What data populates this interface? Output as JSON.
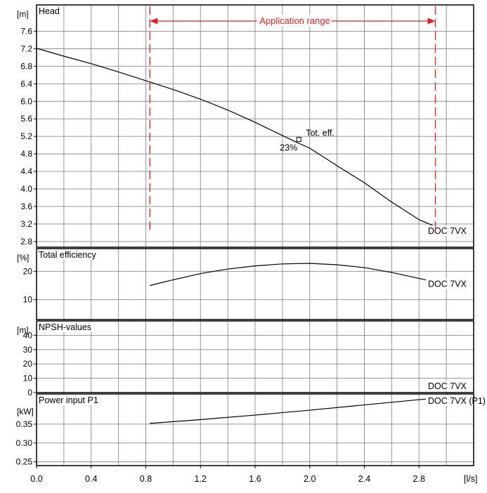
{
  "chart_data": {
    "type": "line",
    "x_axis": {
      "unit": "[l/s]",
      "range": [
        0,
        3.2
      ],
      "ticks": [
        "0.0",
        "0.4",
        "0.8",
        "1.2",
        "1.6",
        "2.0",
        "2.4",
        "2.8"
      ],
      "tick_values": [
        0,
        0.4,
        0.8,
        1.2,
        1.6,
        2.0,
        2.4,
        2.8
      ]
    },
    "application_range": {
      "label": "Application range",
      "from": 0.83,
      "to": 2.92,
      "color": "#e02020"
    },
    "panels": [
      {
        "id": "head",
        "title": "Head",
        "unit": "[m]",
        "ylim": [
          2.67,
          8.2
        ],
        "ticks": [
          "2.8",
          "3.2",
          "3.6",
          "4.0",
          "4.4",
          "4.8",
          "5.2",
          "5.6",
          "6.0",
          "6.4",
          "6.8",
          "7.2",
          "7.6"
        ],
        "tick_values": [
          2.8,
          3.2,
          3.6,
          4.0,
          4.4,
          4.8,
          5.2,
          5.6,
          6.0,
          6.4,
          6.8,
          7.2,
          7.6
        ],
        "series": [
          {
            "name": "DOC 7VX",
            "x": [
              0,
              0.2,
              0.4,
              0.6,
              0.8,
              1.0,
              1.2,
              1.4,
              1.6,
              1.8,
              1.9,
              2.0,
              2.2,
              2.4,
              2.6,
              2.8,
              2.92
            ],
            "y": [
              7.21,
              7.03,
              6.86,
              6.67,
              6.47,
              6.27,
              6.05,
              5.8,
              5.52,
              5.22,
              5.07,
              4.93,
              4.53,
              4.14,
              3.7,
              3.3,
              3.14
            ]
          }
        ],
        "marker": {
          "x": 1.92,
          "y": 5.13,
          "label": "Tot. eff.",
          "value_label": "23%"
        }
      },
      {
        "id": "efficiency",
        "title": "Total efficiency",
        "unit": "[%]",
        "ylim": [
          3,
          28
        ],
        "ticks": [
          "10",
          "20"
        ],
        "tick_values": [
          10,
          20
        ],
        "series": [
          {
            "name": "DOC 7VX",
            "x": [
              0.83,
              1.0,
              1.2,
              1.4,
              1.6,
              1.8,
              2.0,
              2.2,
              2.4,
              2.6,
              2.8,
              2.92
            ],
            "y": [
              15.0,
              17.0,
              19.2,
              20.8,
              21.9,
              22.6,
              22.8,
              22.3,
              21.3,
              19.6,
              17.5,
              16.2
            ]
          }
        ]
      },
      {
        "id": "npsh",
        "title": "NPSH-values",
        "unit": "[m]",
        "ylim": [
          0,
          50
        ],
        "ticks": [
          "0",
          "10",
          "20",
          "30",
          "40"
        ],
        "tick_values": [
          0,
          10,
          20,
          30,
          40
        ],
        "series": [
          {
            "name": "DOC 7VX",
            "x": [],
            "y": []
          }
        ]
      },
      {
        "id": "power",
        "title": "Power input P1",
        "unit": "[kW]",
        "ylim": [
          0.24,
          0.43
        ],
        "ticks": [
          "0.25",
          "0.30",
          "0.35"
        ],
        "tick_values": [
          0.25,
          0.3,
          0.35
        ],
        "series": [
          {
            "name": "DOC 7VX (P1)",
            "x": [
              0.83,
              1.2,
              1.6,
              2.0,
              2.4,
              2.8,
              2.92
            ],
            "y": [
              0.352,
              0.362,
              0.374,
              0.387,
              0.401,
              0.415,
              0.419
            ]
          }
        ]
      }
    ]
  }
}
